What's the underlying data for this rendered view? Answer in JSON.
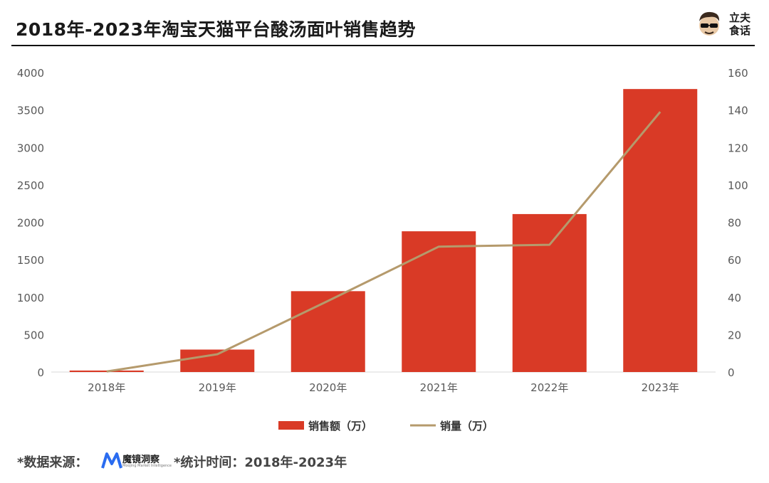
{
  "title": "2018年-2023年淘宝天猫平台酸汤面叶销售趋势",
  "brand": {
    "line1": "立夫",
    "line2": "食话"
  },
  "footer": {
    "source_label": "*数据来源：",
    "source_logo_name": "魔镜洞察",
    "source_logo_sub": "Moojing Market Intelligence",
    "period": "*统计时间：2018年-2023年"
  },
  "colors": {
    "bar": "#d93a26",
    "line": "#b59a6c",
    "text": "#595959"
  },
  "chart_data": {
    "type": "bar",
    "categories": [
      "2018年",
      "2019年",
      "2020年",
      "2021年",
      "2022年",
      "2023年"
    ],
    "series": [
      {
        "name": "销售额（万）",
        "type": "bar",
        "axis": "left",
        "values": [
          20,
          300,
          1080,
          1880,
          2110,
          3780
        ]
      },
      {
        "name": "销量（万）",
        "type": "line",
        "axis": "right",
        "values": [
          0.3,
          9.5,
          38,
          67,
          68,
          139
        ]
      }
    ],
    "y_left": {
      "ylim": [
        0,
        4000
      ],
      "ticks": [
        0,
        500,
        1000,
        1500,
        2000,
        2500,
        3000,
        3500,
        4000
      ]
    },
    "y_right": {
      "ylim": [
        0,
        160
      ],
      "ticks": [
        0,
        20,
        40,
        60,
        80,
        100,
        120,
        140,
        160
      ]
    },
    "grid": false,
    "legend": "bottom-center"
  }
}
